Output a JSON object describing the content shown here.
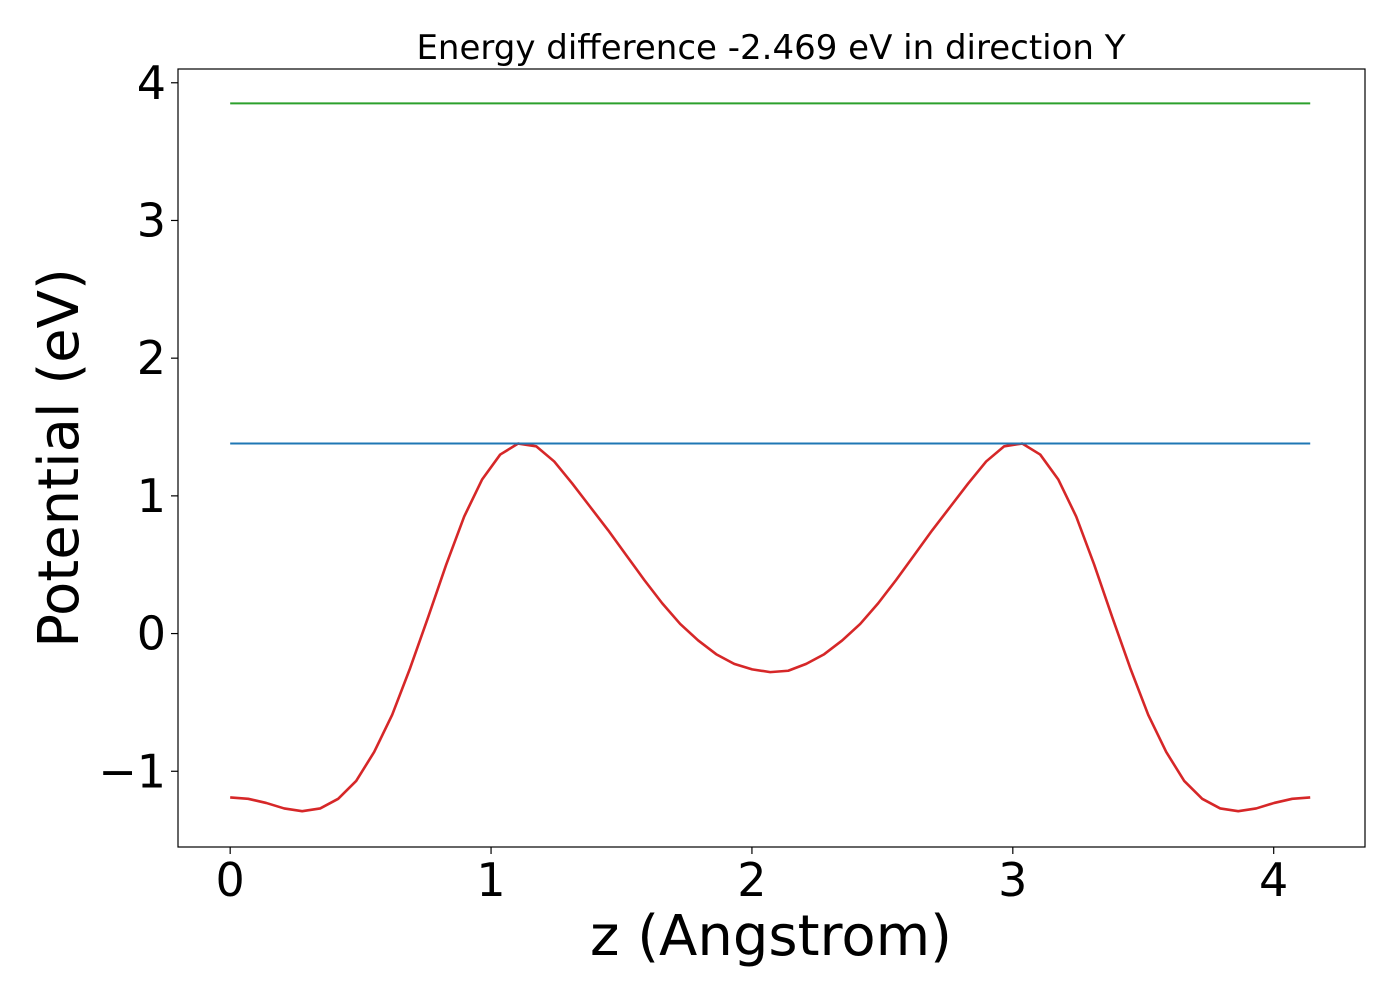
{
  "chart_data": {
    "type": "line",
    "title": "Energy difference -2.469 eV in direction Y",
    "xlabel": "z (Angstrom)",
    "ylabel": "Potential (eV)",
    "xlim": [
      -0.2,
      4.35
    ],
    "ylim": [
      -1.55,
      4.1
    ],
    "xticks": [
      0,
      1,
      2,
      3,
      4
    ],
    "xtick_labels": [
      "0",
      "1",
      "2",
      "3",
      "4"
    ],
    "yticks": [
      -1,
      0,
      1,
      2,
      3,
      4
    ],
    "ytick_labels": [
      "−1",
      "0",
      "1",
      "2",
      "3",
      "4"
    ],
    "grid": false,
    "series": [
      {
        "color": "#d62728",
        "x": [
          0,
          0.069,
          0.138,
          0.207,
          0.276,
          0.345,
          0.414,
          0.483,
          0.552,
          0.621,
          0.69,
          0.759,
          0.828,
          0.897,
          0.966,
          1.035,
          1.104,
          1.173,
          1.242,
          1.311,
          1.38,
          1.449,
          1.518,
          1.587,
          1.656,
          1.725,
          1.794,
          1.863,
          1.932,
          2.001,
          2.07,
          2.139,
          2.208,
          2.277,
          2.346,
          2.415,
          2.484,
          2.553,
          2.622,
          2.691,
          2.76,
          2.829,
          2.898,
          2.967,
          3.036,
          3.105,
          3.174,
          3.243,
          3.312,
          3.381,
          3.45,
          3.519,
          3.588,
          3.657,
          3.726,
          3.795,
          3.864,
          3.933,
          4.002,
          4.071,
          4.14
        ],
        "y": [
          -1.19,
          -1.2,
          -1.23,
          -1.27,
          -1.29,
          -1.27,
          -1.2,
          -1.07,
          -0.86,
          -0.59,
          -0.25,
          0.12,
          0.5,
          0.85,
          1.12,
          1.3,
          1.38,
          1.36,
          1.25,
          1.09,
          0.92,
          0.75,
          0.57,
          0.39,
          0.22,
          0.07,
          -0.05,
          -0.15,
          -0.22,
          -0.26,
          -0.28,
          -0.27,
          -0.22,
          -0.15,
          -0.05,
          0.07,
          0.22,
          0.39,
          0.57,
          0.75,
          0.92,
          1.09,
          1.25,
          1.36,
          1.38,
          1.3,
          1.12,
          0.85,
          0.5,
          0.12,
          -0.25,
          -0.59,
          -0.86,
          -1.07,
          -1.2,
          -1.27,
          -1.29,
          -1.27,
          -1.23,
          -1.2,
          -1.19
        ]
      },
      {
        "color": "#1f77b4",
        "x": [
          0,
          4.14
        ],
        "y": [
          1.38,
          1.38
        ]
      },
      {
        "color": "#2ca02c",
        "x": [
          0,
          4.14
        ],
        "y": [
          3.85,
          3.85
        ]
      }
    ]
  }
}
